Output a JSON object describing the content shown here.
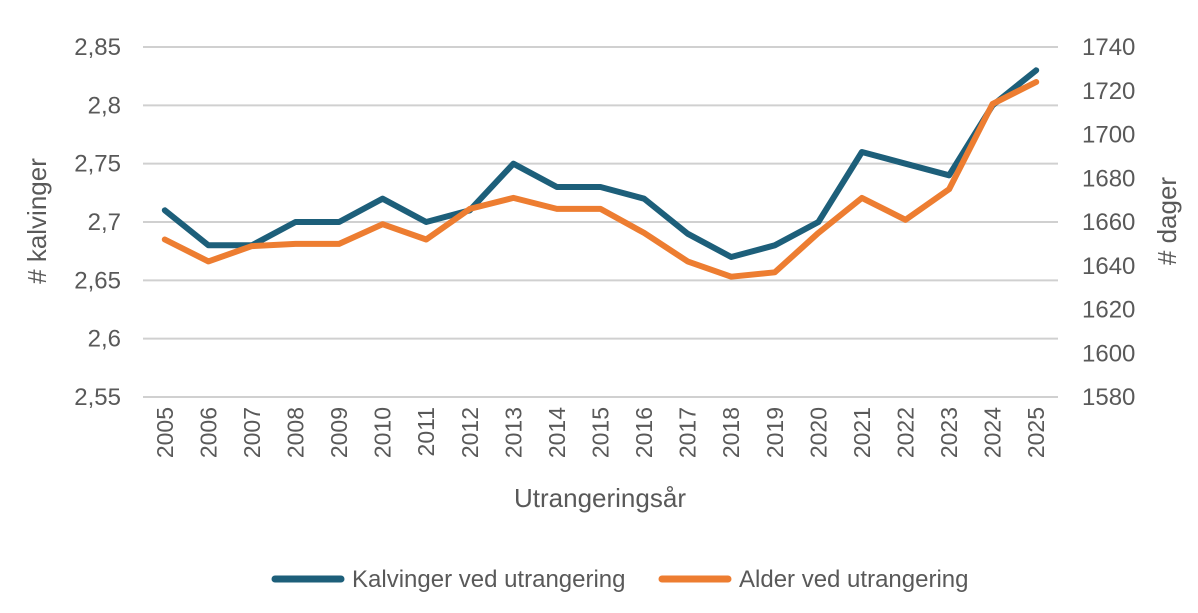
{
  "chart_data": {
    "type": "line",
    "categories": [
      "2005",
      "2006",
      "2007",
      "2008",
      "2009",
      "2010",
      "2011",
      "2012",
      "2013",
      "2014",
      "2015",
      "2016",
      "2017",
      "2018",
      "2019",
      "2020",
      "2021",
      "2022",
      "2023",
      "2024",
      "2025"
    ],
    "xlabel": "Utrangeringsår",
    "ylabel_left": "# kalvinger",
    "ylabel_right": "# dager",
    "ylim_left": [
      2.55,
      2.85
    ],
    "ylim_right": [
      1580,
      1740
    ],
    "yticks_left": [
      "2,85",
      "2,8",
      "2,75",
      "2,7",
      "2,65",
      "2,6",
      "2,55"
    ],
    "yticks_left_values": [
      2.85,
      2.8,
      2.75,
      2.7,
      2.65,
      2.6,
      2.55
    ],
    "yticks_right": [
      "1740",
      "1720",
      "1700",
      "1680",
      "1660",
      "1640",
      "1620",
      "1600",
      "1580"
    ],
    "yticks_right_values": [
      1740,
      1720,
      1700,
      1680,
      1660,
      1640,
      1620,
      1600,
      1580
    ],
    "grid": true,
    "legend_position": "bottom",
    "series": [
      {
        "name": "Kalvinger ved utrangering",
        "axis": "left",
        "color": "#1d5f7a",
        "values": [
          2.71,
          2.68,
          2.68,
          2.7,
          2.7,
          2.72,
          2.7,
          2.71,
          2.75,
          2.73,
          2.73,
          2.72,
          2.69,
          2.67,
          2.68,
          2.7,
          2.76,
          2.75,
          2.74,
          2.8,
          2.83
        ]
      },
      {
        "name": "Alder ved utrangering",
        "axis": "right",
        "color": "#ed7d31",
        "values": [
          1652,
          1642,
          1649,
          1650,
          1650,
          1659,
          1652,
          1666,
          1671,
          1666,
          1666,
          1655,
          1642,
          1635,
          1637,
          1655,
          1671,
          1661,
          1675,
          1714,
          1724
        ]
      }
    ]
  }
}
